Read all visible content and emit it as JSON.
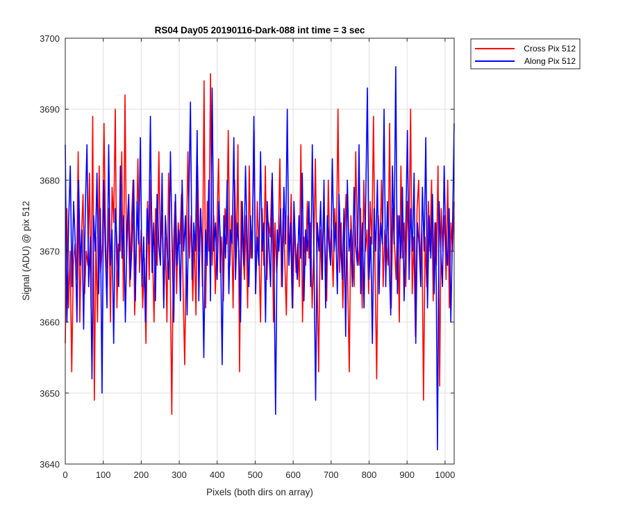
{
  "chart_data": {
    "type": "line",
    "title": "RS04 Day05 20190116-Dark-088 int time = 3 sec",
    "xlabel": "Pixels (both dirs on array)",
    "ylabel": "Signal (ADU) @ pix 512",
    "xlim": [
      0,
      1024
    ],
    "ylim": [
      3640,
      3700
    ],
    "xticks": [
      "0",
      "100",
      "200",
      "300",
      "400",
      "500",
      "600",
      "700",
      "800",
      "900",
      "1000"
    ],
    "yticks": [
      "3640",
      "3650",
      "3660",
      "3670",
      "3680",
      "3690",
      "3700"
    ],
    "grid": true,
    "legend_position": "outside-top-right",
    "noise_summary": {
      "mean": 3671,
      "std": 6
    },
    "series": [
      {
        "name": "Cross Pix 512",
        "color": "#ff0000",
        "values": [
          3657,
          3676,
          3662,
          3670,
          3653,
          3668,
          3671,
          3666,
          3684,
          3660,
          3672,
          3678,
          3664,
          3670,
          3668,
          3681,
          3662,
          3689,
          3649,
          3672,
          3660,
          3682,
          3667,
          3671,
          3688,
          3672,
          3665,
          3676,
          3660,
          3679,
          3674,
          3690,
          3662,
          3671,
          3670,
          3684,
          3663,
          3692,
          3669,
          3676,
          3665,
          3674,
          3680,
          3661,
          3670,
          3683,
          3667,
          3673,
          3662,
          3669,
          3657,
          3677,
          3666,
          3680,
          3671,
          3660,
          3676,
          3668,
          3684,
          3670,
          3675,
          3663,
          3672,
          3660,
          3681,
          3668,
          3647,
          3670,
          3677,
          3664,
          3674,
          3671,
          3678,
          3665,
          3654,
          3670,
          3684,
          3669,
          3675,
          3663,
          3672,
          3661,
          3682,
          3670,
          3676,
          3665,
          3694,
          3662,
          3677,
          3670,
          3695,
          3668,
          3675,
          3664,
          3673,
          3683,
          3667,
          3672,
          3663,
          3676,
          3671,
          3687,
          3668,
          3675,
          3662,
          3680,
          3669,
          3685,
          3653,
          3677,
          3671,
          3666,
          3675,
          3662,
          3682,
          3669,
          3673,
          3687,
          3664,
          3677,
          3670,
          3660,
          3676,
          3668,
          3682,
          3666,
          3674,
          3672,
          3680,
          3660,
          3674,
          3667,
          3671,
          3683,
          3665,
          3676,
          3669,
          3661,
          3675,
          3670,
          3678,
          3662,
          3674,
          3667,
          3671,
          3665,
          3685,
          3660,
          3672,
          3668,
          3677,
          3669,
          3674,
          3662,
          3670,
          3683,
          3667,
          3653,
          3673,
          3666,
          3676,
          3670,
          3663,
          3680,
          3669,
          3673,
          3665,
          3676,
          3670,
          3690,
          3667,
          3674,
          3662,
          3671,
          3678,
          3666,
          3653,
          3675,
          3670,
          3665,
          3684,
          3671,
          3668,
          3676,
          3662,
          3680,
          3670,
          3673,
          3664,
          3677,
          3671,
          3689,
          3667,
          3652,
          3675,
          3670,
          3680,
          3665,
          3673,
          3671,
          3668,
          3688,
          3662,
          3676,
          3671,
          3666,
          3675,
          3660,
          3682,
          3669,
          3674,
          3665,
          3677,
          3671,
          3690,
          3664,
          3672,
          3658,
          3676,
          3680,
          3668,
          3673,
          3649,
          3672,
          3665,
          3677,
          3670,
          3680,
          3663,
          3674,
          3668,
          3682,
          3651,
          3676,
          3670,
          3675,
          3666,
          3680,
          3662,
          3674,
          3670,
          3677
        ]
      },
      {
        "name": "Along Pix 512",
        "color": "#0000ff",
        "values": [
          3685,
          3660,
          3674,
          3682,
          3665,
          3677,
          3671,
          3660,
          3680,
          3668,
          3673,
          3659,
          3676,
          3685,
          3665,
          3672,
          3652,
          3675,
          3670,
          3681,
          3664,
          3676,
          3650,
          3680,
          3670,
          3662,
          3685,
          3668,
          3673,
          3657,
          3676,
          3671,
          3665,
          3682,
          3669,
          3675,
          3660,
          3673,
          3678,
          3666,
          3671,
          3680,
          3663,
          3677,
          3671,
          3686,
          3665,
          3672,
          3660,
          3676,
          3671,
          3689,
          3667,
          3674,
          3663,
          3678,
          3671,
          3668,
          3681,
          3662,
          3675,
          3670,
          3666,
          3684,
          3671,
          3660,
          3678,
          3668,
          3673,
          3663,
          3680,
          3670,
          3675,
          3661,
          3677,
          3691,
          3666,
          3674,
          3670,
          3687,
          3663,
          3676,
          3671,
          3655,
          3673,
          3668,
          3680,
          3663,
          3693,
          3670,
          3674,
          3666,
          3677,
          3671,
          3654,
          3675,
          3669,
          3680,
          3664,
          3673,
          3671,
          3686,
          3666,
          3674,
          3670,
          3660,
          3677,
          3668,
          3682,
          3671,
          3665,
          3675,
          3669,
          3689,
          3664,
          3672,
          3668,
          3684,
          3670,
          3674,
          3660,
          3677,
          3671,
          3665,
          3681,
          3669,
          3647,
          3673,
          3670,
          3676,
          3665,
          3679,
          3671,
          3690,
          3668,
          3674,
          3662,
          3677,
          3670,
          3666,
          3675,
          3669,
          3681,
          3663,
          3673,
          3670,
          3677,
          3665,
          3685,
          3669,
          3649,
          3674,
          3670,
          3677,
          3666,
          3680,
          3662,
          3675,
          3671,
          3668,
          3683,
          3670,
          3674,
          3664,
          3678,
          3671,
          3666,
          3676,
          3658,
          3680,
          3670,
          3673,
          3665,
          3679,
          3671,
          3668,
          3685,
          3664,
          3674,
          3662,
          3677,
          3693,
          3666,
          3672,
          3657,
          3676,
          3670,
          3680,
          3664,
          3674,
          3671,
          3690,
          3665,
          3677,
          3669,
          3661,
          3682,
          3671,
          3696,
          3664,
          3675,
          3669,
          3679,
          3663,
          3673,
          3687,
          3666,
          3676,
          3670,
          3681,
          3657,
          3674,
          3671,
          3665,
          3679,
          3670,
          3686,
          3662,
          3675,
          3669,
          3678,
          3664,
          3674,
          3642,
          3677,
          3670,
          3665,
          3682,
          3671,
          3668,
          3676,
          3660,
          3673,
          3688
        ]
      }
    ]
  }
}
